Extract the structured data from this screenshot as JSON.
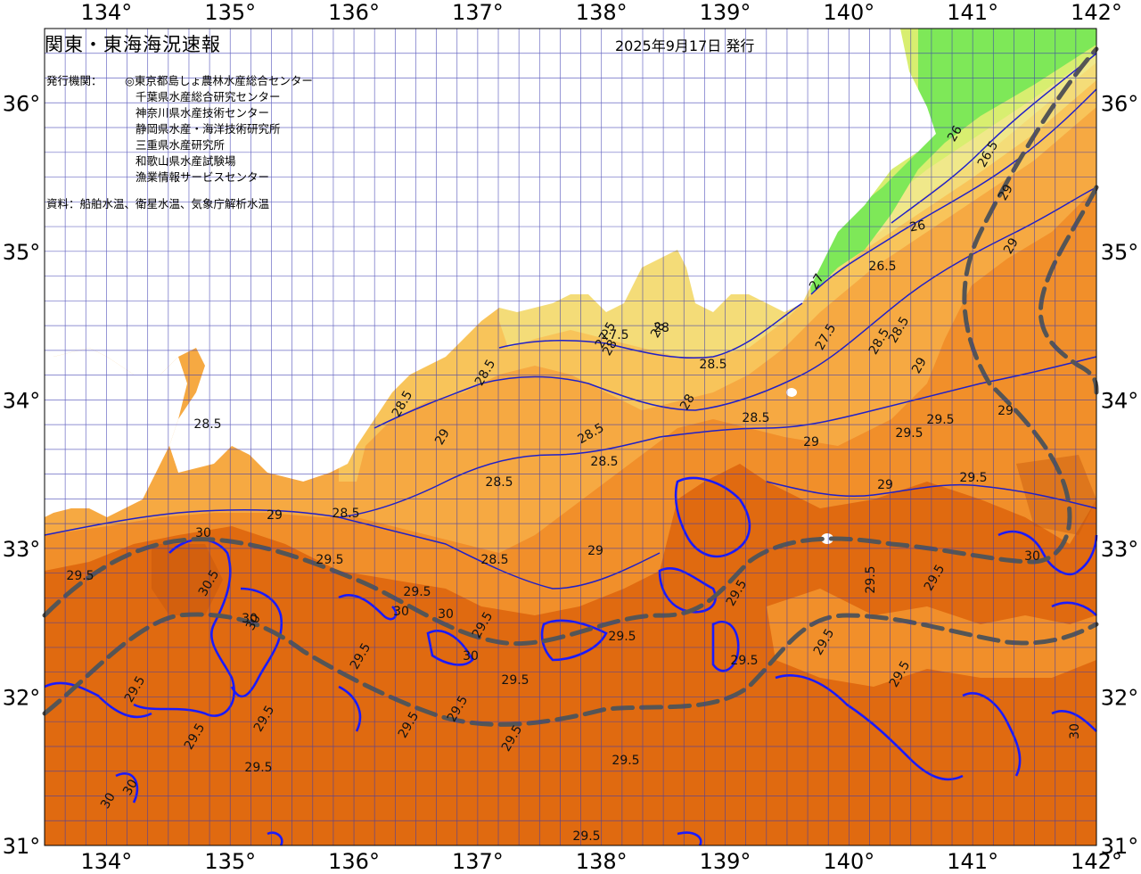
{
  "map": {
    "title": "関東・東海海況速報",
    "issue_date": "2025年9月17日 発行",
    "issuer_label": "発行機関：",
    "issuers": [
      "◎東京都島しょ農林水産総合センター",
      "千葉県水産総合研究センター",
      "神奈川県水産技術センター",
      "静岡県水産・海洋技術研究所",
      "三重県水産研究所",
      "和歌山県水産試験場",
      "漁業情報サービスセンター"
    ],
    "source_note": "資料：船舶水温、衛星水温、気象庁解析水温",
    "lon_labels": [
      "134°",
      "135°",
      "136°",
      "137°",
      "138°",
      "139°",
      "140°",
      "141°",
      "142°"
    ],
    "lat_labels": [
      "36°",
      "35°",
      "34°",
      "33°",
      "32°",
      "31°"
    ],
    "colors": {
      "land": "#ffffff",
      "sst_29_5_plus": "#e06a10",
      "sst_29_to_29_5": "#f18f2a",
      "sst_28_5_to_29": "#f6a942",
      "sst_28_to_28_5": "#f8c45a",
      "sst_27_5_to_28": "#f4dc78",
      "sst_27_to_27_5": "#f0e88a",
      "sst_26_5_to_27": "#d8ee70",
      "sst_26_to_26_5": "#a0ec5a",
      "sst_below_26": "#7ee858",
      "isotherm": "#1a1ad0",
      "isotherm_30": "#1a1aff",
      "kuroshio_path": "#555555",
      "grid": "#3a3ab0"
    },
    "contour_labels": [
      "26",
      "26.5",
      "26",
      "26.5",
      "27",
      "27.5",
      "28",
      "28.5",
      "28.5",
      "29",
      "29",
      "28.5",
      "29",
      "29.5",
      "29.5",
      "29",
      "28.5",
      "29",
      "27.5",
      "28",
      "28",
      "28",
      "27.5",
      "28.5",
      "28.5",
      "29",
      "29",
      "28.5",
      "28.5",
      "28.5",
      "28.5",
      "29",
      "28.5",
      "28.5",
      "29",
      "29.5",
      "29.5",
      "29.5",
      "29.5",
      "30",
      "30.5",
      "30",
      "29.5",
      "29.5",
      "29.5",
      "29.5",
      "29.5",
      "30",
      "30",
      "29.5",
      "29.5",
      "29.5",
      "30",
      "29.5",
      "29.5",
      "29.5",
      "29.5",
      "29.5",
      "29.5",
      "29.5",
      "29.5",
      "30",
      "29.5",
      "29.5",
      "30",
      "30",
      "29.5",
      "30",
      "30"
    ]
  }
}
